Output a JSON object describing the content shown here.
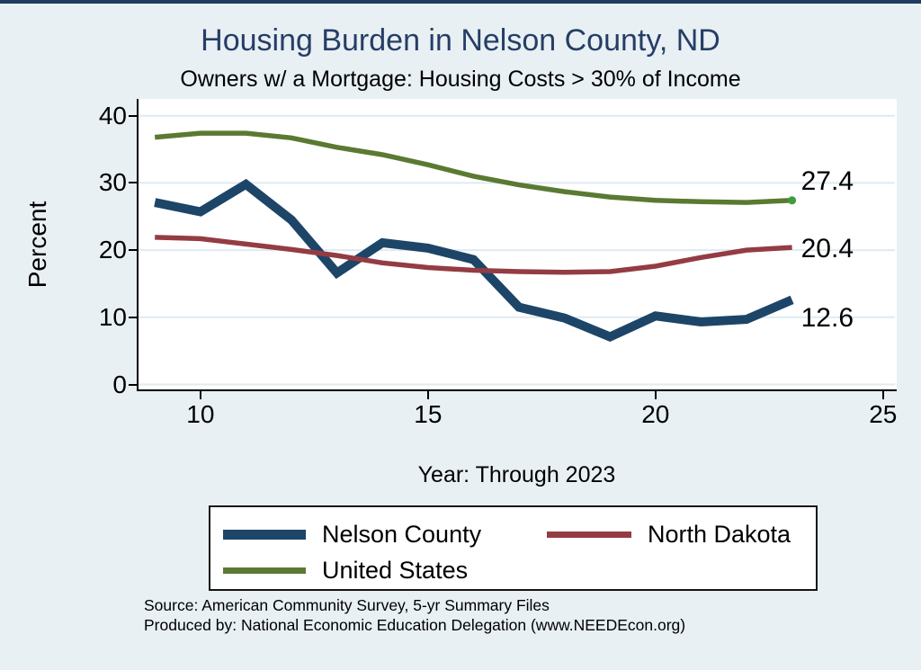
{
  "figure": {
    "title": "Housing Burden in Nelson County, ND",
    "subtitle": "Owners w/ a Mortgage: Housing Costs > 30% of Income",
    "x_axis_title": "Year: Through 2023",
    "y_axis_title": "Percent",
    "source_line1": "Source: American Community Survey, 5-yr Summary Files",
    "source_line2": "Produced by: National Economic Education Delegation (www.NEEDEcon.org)"
  },
  "colors": {
    "background": "#e8f0f4",
    "plot_background": "#ffffff",
    "gridline": "#dfeaf2",
    "axis": "#000000",
    "title_navy": "#263d66",
    "nelson_navy": "#1d4568",
    "north_dakota_maroon": "#943c43",
    "united_states_olive": "#5a7a32",
    "end_marker_green": "#3f9b3b"
  },
  "chart_data": {
    "type": "line",
    "title": "Housing Burden in Nelson County, ND",
    "subtitle": "Owners w/ a Mortgage: Housing Costs > 30% of Income",
    "xlabel": "Year: Through 2023",
    "ylabel": "Percent",
    "x": [
      9,
      10,
      11,
      12,
      13,
      14,
      15,
      16,
      17,
      18,
      19,
      20,
      21,
      22,
      23
    ],
    "x_ticks": [
      10,
      15,
      20,
      25
    ],
    "y_ticks": [
      0,
      10,
      20,
      30,
      40
    ],
    "xlim": [
      8.6,
      25.3
    ],
    "ylim": [
      -1,
      42.5
    ],
    "grid": "horizontal",
    "legend_position": "bottom",
    "series": [
      {
        "name": "Nelson County",
        "color": "#1d4568",
        "line_width": 10,
        "values": [
          27.1,
          25.7,
          29.8,
          24.5,
          16.6,
          21.1,
          20.3,
          18.6,
          11.5,
          9.9,
          7.1,
          10.2,
          9.3,
          9.7,
          12.6
        ],
        "end_label": "12.6",
        "end_marker": false
      },
      {
        "name": "North Dakota",
        "color": "#943c43",
        "line_width": 5.5,
        "values": [
          21.9,
          21.7,
          20.9,
          20.1,
          19.2,
          18.1,
          17.4,
          17.0,
          16.8,
          16.7,
          16.8,
          17.6,
          18.9,
          20.0,
          20.4
        ],
        "end_label": "20.4",
        "end_marker": false
      },
      {
        "name": "United States",
        "color": "#5a7a32",
        "line_width": 5.5,
        "values": [
          36.8,
          37.4,
          37.4,
          36.7,
          35.3,
          34.2,
          32.7,
          31.0,
          29.7,
          28.7,
          27.9,
          27.4,
          27.2,
          27.1,
          27.4
        ],
        "end_label": "27.4",
        "end_marker": true
      }
    ]
  }
}
